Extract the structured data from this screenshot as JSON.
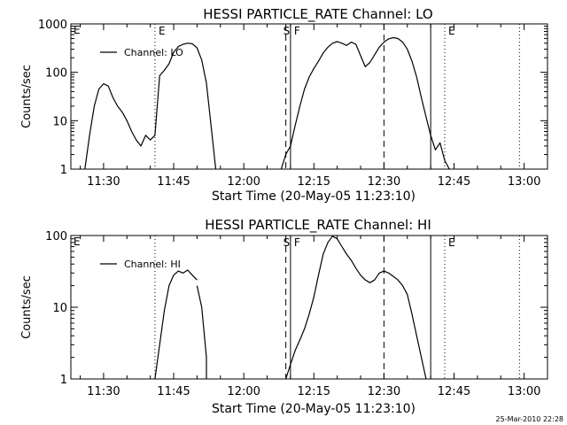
{
  "timestamp": "25-Mar-2010 22:28",
  "chart_data": [
    {
      "type": "line",
      "title": "HESSI PARTICLE_RATE Channel: LO",
      "xlabel": "Start Time (20-May-05 11:23:10)",
      "ylabel": "Counts/sec",
      "yscale": "log",
      "ylim": [
        1,
        1000
      ],
      "yticks": [
        1,
        10,
        100,
        1000
      ],
      "xlim": [
        "11:23",
        "13:05"
      ],
      "xticks": [
        "11:30",
        "11:45",
        "12:00",
        "12:15",
        "12:30",
        "12:45",
        "13:00"
      ],
      "grid": false,
      "legend": {
        "position": "top-left",
        "entries": [
          "Channel: LO"
        ]
      },
      "series": [
        {
          "name": "Channel: LO",
          "segments": [
            [
              [
                "11:26",
                1
              ],
              [
                "11:27",
                5
              ],
              [
                "11:28",
                20
              ],
              [
                "11:29",
                45
              ],
              [
                "11:30",
                58
              ],
              [
                "11:31",
                52
              ],
              [
                "11:32",
                30
              ],
              [
                "11:33",
                20
              ],
              [
                "11:34",
                15
              ],
              [
                "11:35",
                10
              ],
              [
                "11:36",
                6
              ],
              [
                "11:37",
                4
              ],
              [
                "11:38",
                3
              ],
              [
                "11:39",
                5
              ],
              [
                "11:40",
                4
              ],
              [
                "11:41",
                5
              ],
              [
                "11:42",
                85
              ],
              [
                "11:43",
                110
              ],
              [
                "11:44",
                150
              ],
              [
                "11:45",
                260
              ],
              [
                "11:46",
                340
              ],
              [
                "11:47",
                380
              ],
              [
                "11:48",
                400
              ],
              [
                "11:49",
                390
              ],
              [
                "11:50",
                320
              ],
              [
                "11:51",
                180
              ],
              [
                "11:52",
                60
              ],
              [
                "11:53",
                8
              ],
              [
                "11:54",
                1
              ]
            ],
            [
              [
                "12:08",
                1
              ],
              [
                "12:09",
                2
              ],
              [
                "12:10",
                3
              ],
              [
                "12:11",
                8
              ],
              [
                "12:12",
                20
              ],
              [
                "12:13",
                45
              ],
              [
                "12:14",
                80
              ],
              [
                "12:15",
                120
              ],
              [
                "12:16",
                170
              ],
              [
                "12:17",
                250
              ],
              [
                "12:18",
                330
              ],
              [
                "12:19",
                400
              ],
              [
                "12:20",
                430
              ],
              [
                "12:21",
                400
              ],
              [
                "12:22",
                360
              ],
              [
                "12:23",
                420
              ],
              [
                "12:24",
                380
              ],
              [
                "12:25",
                220
              ],
              [
                "12:26",
                130
              ],
              [
                "12:27",
                160
              ],
              [
                "12:28",
                230
              ],
              [
                "12:29",
                330
              ],
              [
                "12:30",
                420
              ],
              [
                "12:31",
                490
              ],
              [
                "12:32",
                520
              ],
              [
                "12:33",
                500
              ],
              [
                "12:34",
                420
              ],
              [
                "12:35",
                300
              ],
              [
                "12:36",
                170
              ],
              [
                "12:37",
                80
              ],
              [
                "12:38",
                30
              ],
              [
                "12:39",
                12
              ],
              [
                "12:40",
                5
              ],
              [
                "12:41",
                2.5
              ],
              [
                "12:42",
                3.5
              ],
              [
                "12:43",
                1.5
              ],
              [
                "12:44",
                1
              ]
            ]
          ]
        }
      ],
      "markers": [
        {
          "time": "11:41",
          "style": "dotted",
          "label": "E"
        },
        {
          "time": "12:09",
          "style": "dashed",
          "label": "S"
        },
        {
          "time": "12:10",
          "style": "solid",
          "label": "F"
        },
        {
          "time": "12:30",
          "style": "dashed",
          "label": ""
        },
        {
          "time": "12:40",
          "style": "solid",
          "label": ""
        },
        {
          "time": "12:43",
          "style": "dotted",
          "label": "E"
        },
        {
          "time": "12:59",
          "style": "dotted",
          "label": ""
        }
      ],
      "corner_labels": {
        "left": "E"
      }
    },
    {
      "type": "line",
      "title": "HESSI PARTICLE_RATE Channel: HI",
      "xlabel": "Start Time (20-May-05 11:23:10)",
      "ylabel": "Counts/sec",
      "yscale": "log",
      "ylim": [
        1,
        100
      ],
      "yticks": [
        1,
        10,
        100
      ],
      "xlim": [
        "11:23",
        "13:05"
      ],
      "xticks": [
        "11:30",
        "11:45",
        "12:00",
        "12:15",
        "12:30",
        "12:45",
        "13:00"
      ],
      "grid": false,
      "legend": {
        "position": "top-left",
        "entries": [
          "Channel: HI"
        ]
      },
      "series": [
        {
          "name": "Channel: HI",
          "segments": [
            [
              [
                "11:41",
                1
              ],
              [
                "11:42",
                3
              ],
              [
                "11:43",
                9
              ],
              [
                "11:44",
                20
              ],
              [
                "11:45",
                28
              ],
              [
                "11:46",
                32
              ],
              [
                "11:47",
                30
              ],
              [
                "11:48",
                33
              ],
              [
                "11:49",
                28
              ],
              [
                "11:50",
                24
              ]
            ],
            [
              [
                "11:50",
                20
              ],
              [
                "11:51",
                10
              ],
              [
                "11:52",
                2
              ],
              [
                "11:52",
                1
              ]
            ],
            [
              [
                "12:09",
                1
              ],
              [
                "12:10",
                1.6
              ],
              [
                "12:11",
                2.5
              ],
              [
                "12:12",
                3.5
              ],
              [
                "12:13",
                5
              ],
              [
                "12:14",
                8
              ],
              [
                "12:15",
                14
              ],
              [
                "12:16",
                28
              ],
              [
                "12:17",
                55
              ],
              [
                "12:18",
                80
              ],
              [
                "12:19",
                98
              ],
              [
                "12:20",
                90
              ],
              [
                "12:21",
                70
              ],
              [
                "12:22",
                55
              ],
              [
                "12:23",
                45
              ],
              [
                "12:24",
                35
              ],
              [
                "12:25",
                28
              ],
              [
                "12:26",
                24
              ],
              [
                "12:27",
                22
              ],
              [
                "12:28",
                24
              ],
              [
                "12:29",
                30
              ],
              [
                "12:30",
                32
              ],
              [
                "12:31",
                30
              ],
              [
                "12:32",
                27
              ],
              [
                "12:33",
                24
              ],
              [
                "12:34",
                20
              ],
              [
                "12:35",
                15
              ],
              [
                "12:36",
                8
              ],
              [
                "12:37",
                4
              ],
              [
                "12:38",
                2
              ],
              [
                "12:39",
                1
              ]
            ]
          ]
        }
      ],
      "markers": [
        {
          "time": "11:41",
          "style": "dotted",
          "label": ""
        },
        {
          "time": "12:09",
          "style": "dashed",
          "label": "S"
        },
        {
          "time": "12:10",
          "style": "solid",
          "label": "F"
        },
        {
          "time": "12:30",
          "style": "dashed",
          "label": ""
        },
        {
          "time": "12:40",
          "style": "solid",
          "label": ""
        },
        {
          "time": "12:43",
          "style": "dotted",
          "label": "E"
        },
        {
          "time": "12:59",
          "style": "dotted",
          "label": ""
        }
      ],
      "corner_labels": {
        "left": "E"
      }
    }
  ]
}
